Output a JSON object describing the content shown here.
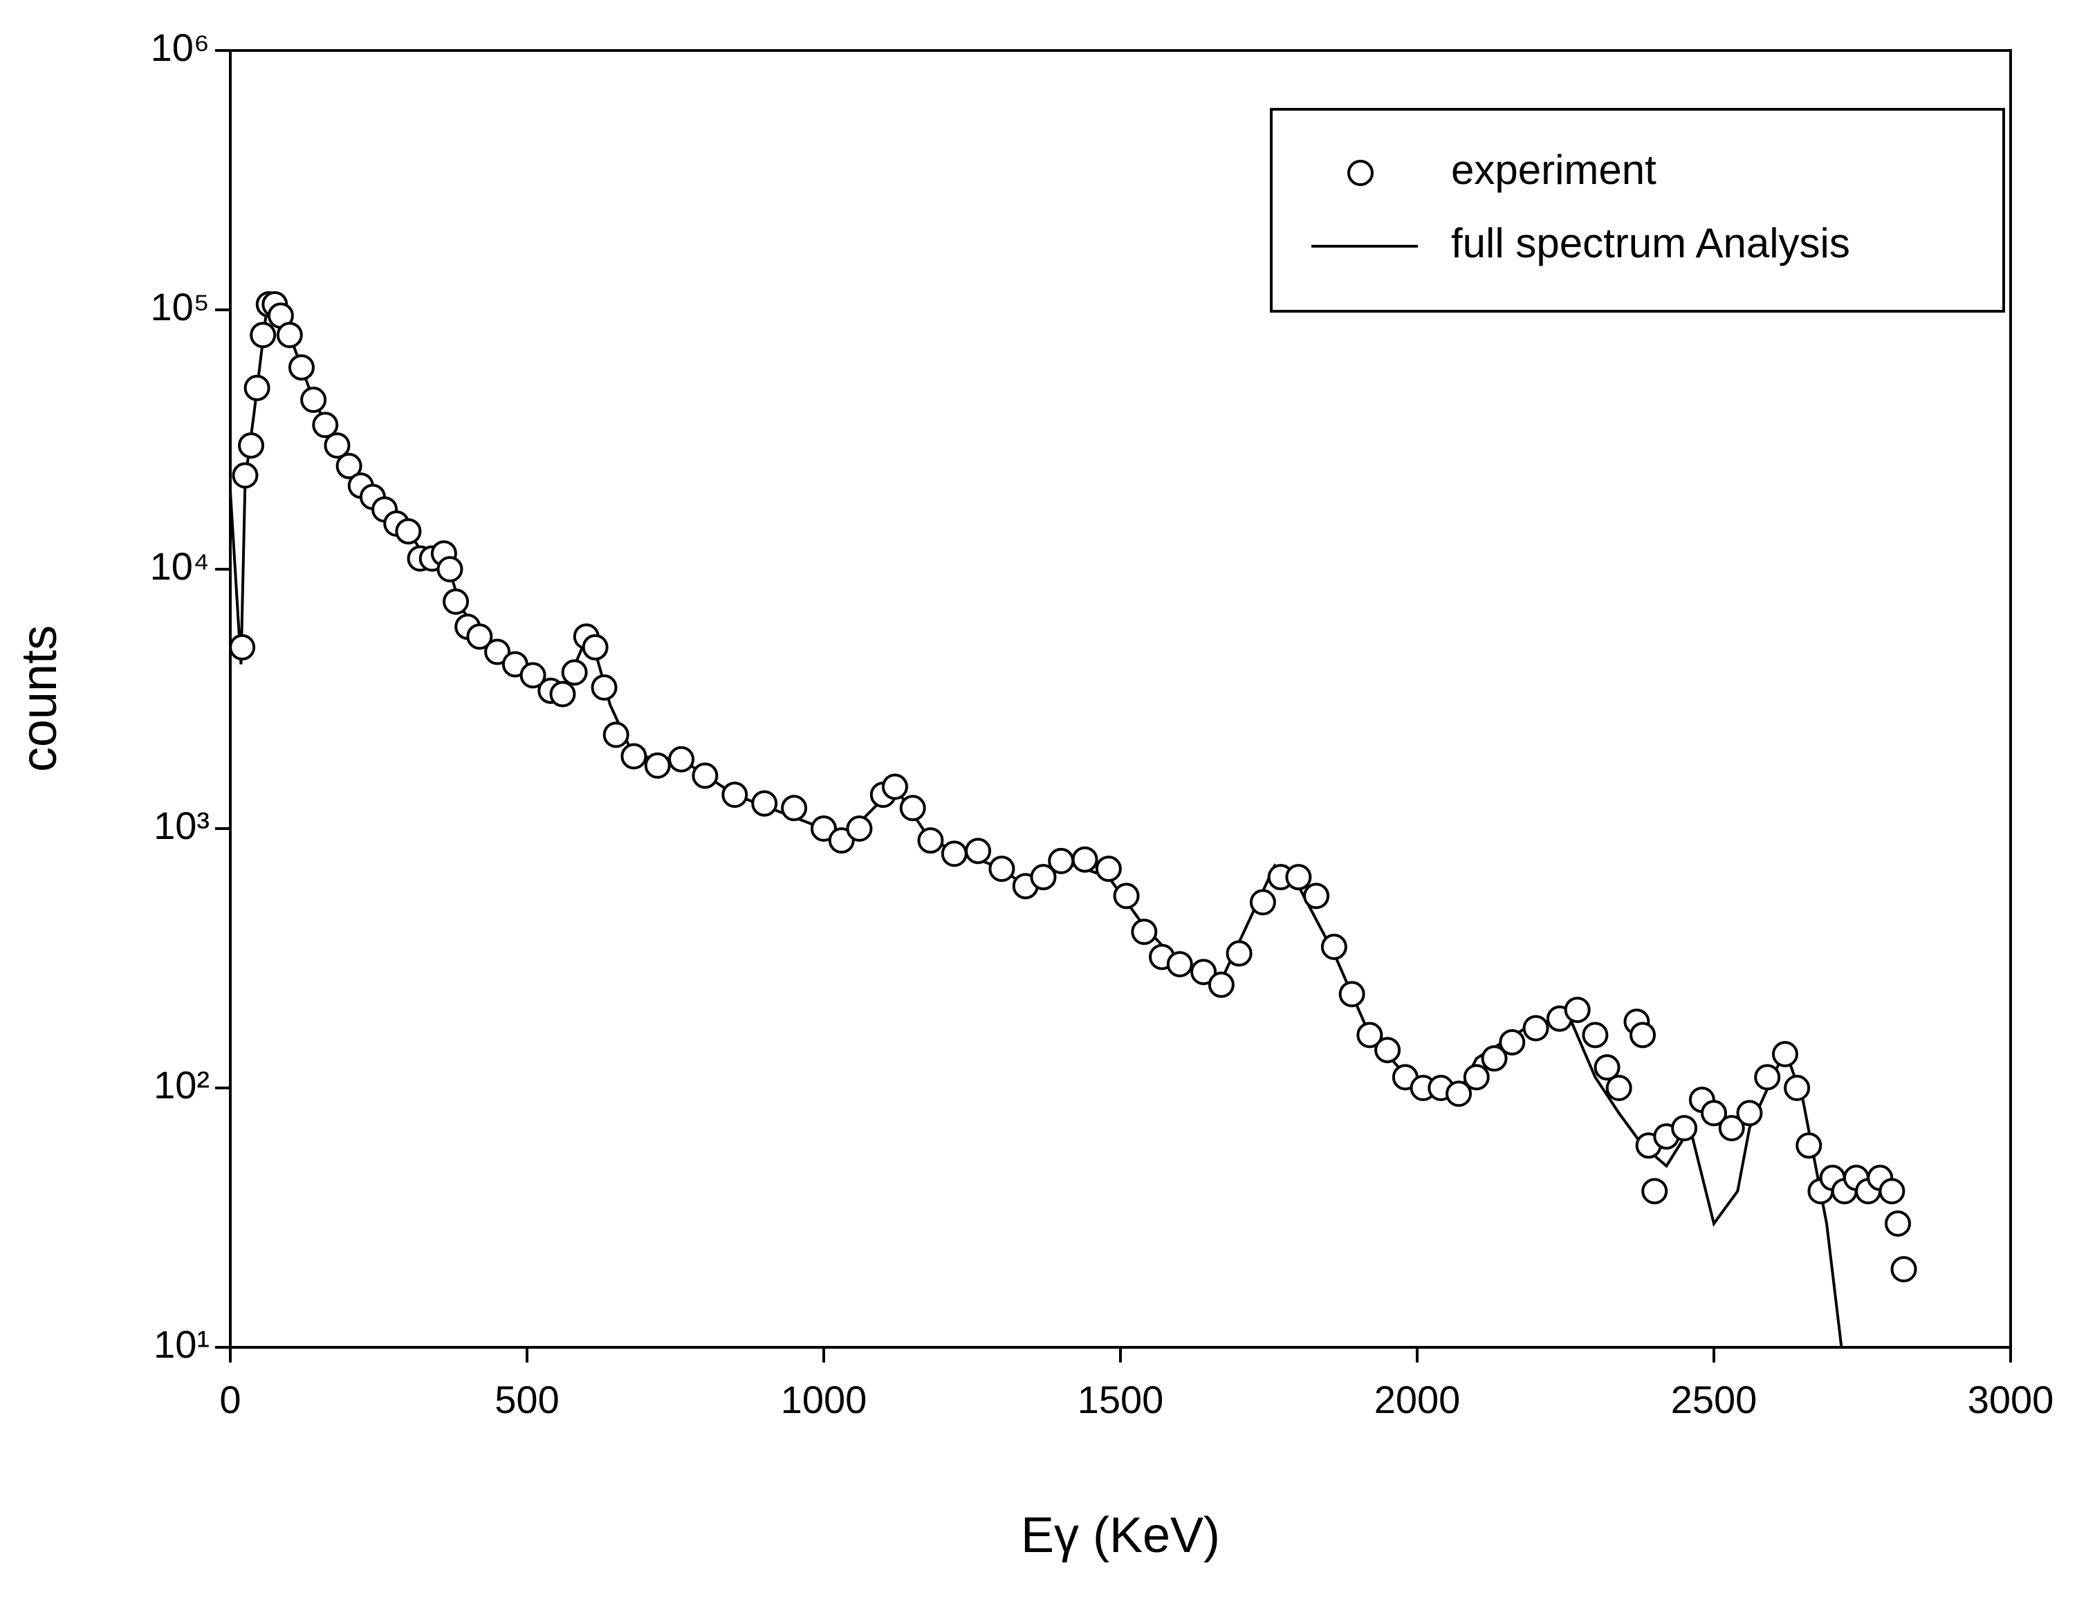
{
  "chart_data": {
    "type": "scatter",
    "x_label": "Eγ (KeV)",
    "y_label": "counts",
    "xlim": [
      0,
      3000
    ],
    "xticks": [
      0,
      500,
      1000,
      1500,
      2000,
      2500,
      3000
    ],
    "ylim": [
      10,
      1000000
    ],
    "yticks": [
      {
        "value": 10,
        "label": "10¹"
      },
      {
        "value": 100,
        "label": "10²"
      },
      {
        "value": 1000,
        "label": "10³"
      },
      {
        "value": 10000,
        "label": "10⁴"
      },
      {
        "value": 100000,
        "label": "10⁵"
      },
      {
        "value": 1000000,
        "label": "10⁶"
      }
    ],
    "y_log": true,
    "grid": false,
    "legend": "upper right",
    "series": [
      {
        "name": "experiment",
        "mode": "markers",
        "color": "#000000",
        "x": [
          20,
          25,
          35,
          45,
          55,
          65,
          75,
          85,
          100,
          120,
          140,
          160,
          180,
          200,
          220,
          240,
          260,
          280,
          300,
          320,
          340,
          360,
          370,
          380,
          400,
          420,
          450,
          480,
          510,
          540,
          560,
          580,
          600,
          615,
          630,
          650,
          680,
          720,
          760,
          800,
          850,
          900,
          950,
          1000,
          1030,
          1060,
          1100,
          1120,
          1150,
          1180,
          1220,
          1260,
          1300,
          1340,
          1370,
          1400,
          1440,
          1480,
          1510,
          1540,
          1570,
          1600,
          1640,
          1670,
          1700,
          1740,
          1770,
          1800,
          1830,
          1860,
          1890,
          1920,
          1950,
          1980,
          2010,
          2040,
          2070,
          2100,
          2130,
          2160,
          2200,
          2240,
          2270,
          2300,
          2320,
          2340,
          2370,
          2380,
          2390,
          2400,
          2420,
          2450,
          2480,
          2500,
          2530,
          2560,
          2590,
          2620,
          2640,
          2660,
          2680,
          2700,
          2720,
          2740,
          2760,
          2780,
          2800,
          2810,
          2820
        ],
        "values": [
          5000,
          23000,
          30000,
          50000,
          80000,
          105000,
          105000,
          95000,
          80000,
          60000,
          45000,
          36000,
          30000,
          25000,
          21000,
          19000,
          17000,
          15000,
          14000,
          11000,
          11000,
          11500,
          10000,
          7500,
          6000,
          5500,
          4800,
          4300,
          3900,
          3400,
          3300,
          4000,
          5500,
          5000,
          3500,
          2300,
          1900,
          1750,
          1850,
          1600,
          1350,
          1250,
          1200,
          1000,
          900,
          1000,
          1350,
          1450,
          1200,
          900,
          800,
          820,
          700,
          600,
          650,
          750,
          760,
          700,
          550,
          400,
          320,
          300,
          280,
          250,
          330,
          520,
          650,
          650,
          550,
          350,
          230,
          160,
          140,
          110,
          100,
          100,
          95,
          110,
          130,
          150,
          170,
          185,
          200,
          160,
          120,
          100,
          180,
          160,
          60,
          40,
          65,
          70,
          90,
          80,
          70,
          80,
          110,
          135,
          100,
          60,
          40,
          45,
          40,
          45,
          40,
          45,
          40,
          30,
          20
        ]
      },
      {
        "name": "full spectrum Analysis",
        "mode": "line",
        "color": "#000000",
        "x": [
          0,
          18,
          25,
          40,
          60,
          75,
          100,
          140,
          200,
          260,
          300,
          330,
          360,
          390,
          450,
          540,
          560,
          605,
          640,
          680,
          760,
          850,
          1000,
          1030,
          1120,
          1180,
          1300,
          1340,
          1400,
          1480,
          1540,
          1600,
          1670,
          1760,
          1800,
          1860,
          1920,
          2000,
          2070,
          2100,
          2200,
          2260,
          2300,
          2340,
          2380,
          2420,
          2460,
          2500,
          2540,
          2560,
          2620,
          2650,
          2690,
          2715
        ],
        "values": [
          20000,
          4300,
          22000,
          40000,
          95000,
          105000,
          80000,
          45000,
          25000,
          17000,
          14000,
          11000,
          11500,
          7000,
          4800,
          3400,
          3300,
          5800,
          3000,
          1900,
          1850,
          1350,
          1000,
          900,
          1450,
          900,
          700,
          600,
          750,
          650,
          420,
          300,
          260,
          720,
          600,
          330,
          160,
          100,
          95,
          130,
          180,
          180,
          110,
          80,
          60,
          50,
          70,
          30,
          40,
          70,
          140,
          90,
          30,
          10
        ]
      }
    ]
  }
}
